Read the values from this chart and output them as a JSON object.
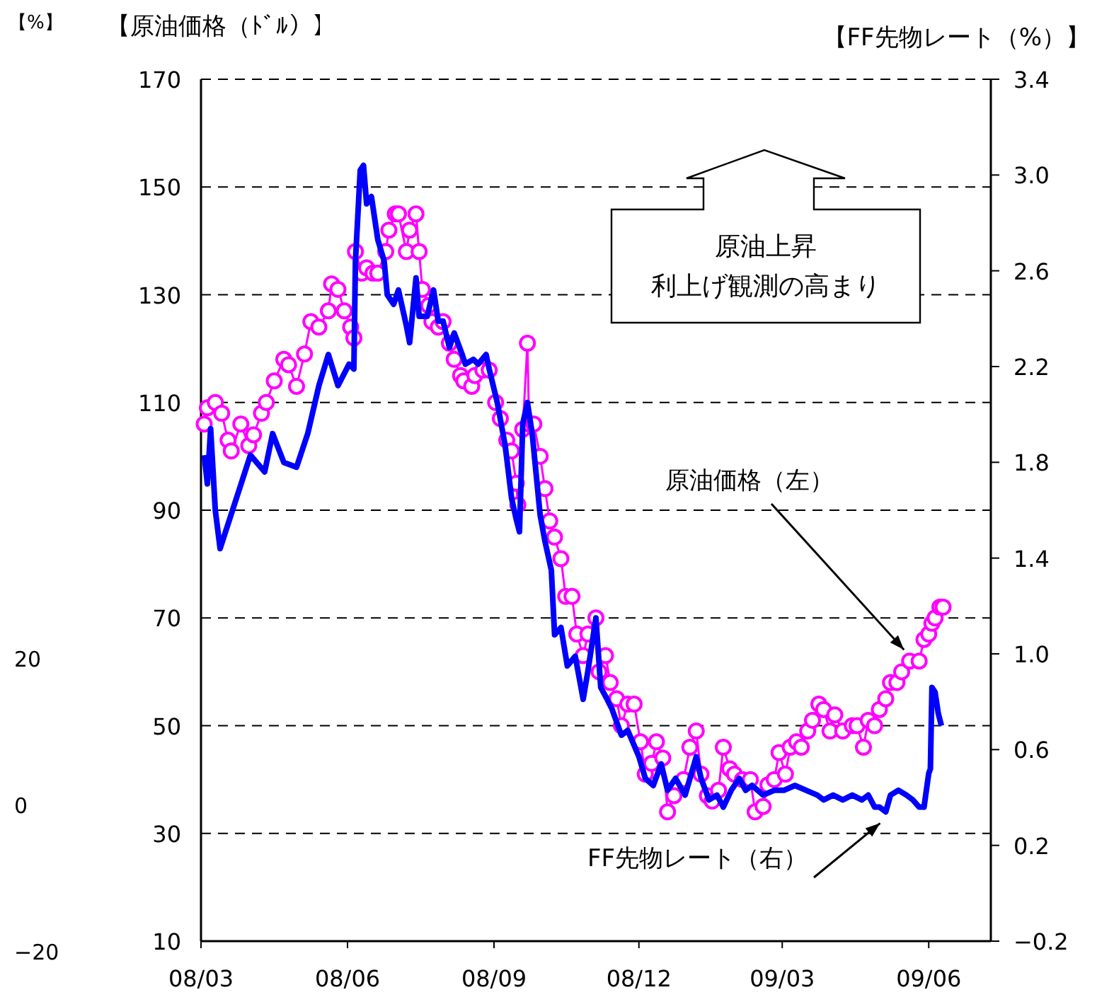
{
  "chart_data": {
    "type": "line",
    "ylabel": "【原油価格（ﾄﾞﾙ）】",
    "y2label": "【FF先物レート（%）】",
    "y3label": "【%】",
    "annotations": [
      "原油上昇",
      "利上げ観測の高まり",
      {
        "text": "原油価格（左）",
        "x": "2009-05-20",
        "y": 62
      },
      {
        "text": "FF先物レート（右）",
        "x": "2009-05-05",
        "y": 34
      }
    ],
    "xlim": [
      "2008-03-01",
      "2009-07-10"
    ],
    "xticks": [
      {
        "value": "2008-03-01",
        "label": "08/03"
      },
      {
        "value": "2008-06-01",
        "label": "08/06"
      },
      {
        "value": "2008-09-01",
        "label": "08/09"
      },
      {
        "value": "2008-12-01",
        "label": "08/12"
      },
      {
        "value": "2009-03-01",
        "label": "09/03"
      },
      {
        "value": "2009-06-01",
        "label": "09/06"
      }
    ],
    "ylim": [
      10,
      170
    ],
    "yticks": [
      10,
      30,
      50,
      70,
      90,
      110,
      130,
      150,
      170
    ],
    "y2lim": [
      -0.2,
      3.4
    ],
    "y2ticks": [
      {
        "value": -0.2,
        "label": "−0.2"
      },
      {
        "value": 0.2,
        "label": "0.2"
      },
      {
        "value": 0.6,
        "label": "0.6"
      },
      {
        "value": 1.0,
        "label": "1.0"
      },
      {
        "value": 1.4,
        "label": "1.4"
      },
      {
        "value": 1.8,
        "label": "1.8"
      },
      {
        "value": 2.2,
        "label": "2.2"
      },
      {
        "value": 2.6,
        "label": "2.6"
      },
      {
        "value": 3.0,
        "label": "3.0"
      },
      {
        "value": 3.4,
        "label": "3.4"
      }
    ],
    "y3lim": [
      -20,
      20
    ],
    "y3ticks": [
      {
        "value": -20,
        "label": "−20"
      },
      0,
      20
    ],
    "grid": "y",
    "series": [
      {
        "color": "#ff00ff",
        "marker": "circle",
        "x": [
          "2008-03-03",
          "2008-03-05",
          "2008-03-10",
          "2008-03-14",
          "2008-03-18",
          "2008-03-20",
          "2008-03-26",
          "2008-03-31",
          "2008-04-03",
          "2008-04-08",
          "2008-04-11",
          "2008-04-16",
          "2008-04-22",
          "2008-04-25",
          "2008-04-30",
          "2008-05-05",
          "2008-05-09",
          "2008-05-14",
          "2008-05-20",
          "2008-05-22",
          "2008-05-26",
          "2008-05-30",
          "2008-06-03",
          "2008-06-05",
          "2008-06-06",
          "2008-06-10",
          "2008-06-13",
          "2008-06-17",
          "2008-06-20",
          "2008-06-25",
          "2008-06-27",
          "2008-07-01",
          "2008-07-03",
          "2008-07-08",
          "2008-07-10",
          "2008-07-14",
          "2008-07-16",
          "2008-07-18",
          "2008-07-22",
          "2008-07-24",
          "2008-07-28",
          "2008-07-31",
          "2008-08-04",
          "2008-08-07",
          "2008-08-11",
          "2008-08-13",
          "2008-08-18",
          "2008-08-20",
          "2008-08-25",
          "2008-08-29",
          "2008-09-02",
          "2008-09-05",
          "2008-09-09",
          "2008-09-12",
          "2008-09-15",
          "2008-09-16",
          "2008-09-19",
          "2008-09-22",
          "2008-09-23",
          "2008-09-26",
          "2008-09-30",
          "2008-10-03",
          "2008-10-06",
          "2008-10-09",
          "2008-10-13",
          "2008-10-16",
          "2008-10-20",
          "2008-10-23",
          "2008-10-27",
          "2008-10-30",
          "2008-11-04",
          "2008-11-06",
          "2008-11-10",
          "2008-11-13",
          "2008-11-17",
          "2008-11-20",
          "2008-11-24",
          "2008-11-28",
          "2008-12-02",
          "2008-12-05",
          "2008-12-09",
          "2008-12-12",
          "2008-12-16",
          "2008-12-19",
          "2008-12-23",
          "2008-12-29",
          "2009-01-02",
          "2009-01-06",
          "2009-01-09",
          "2009-01-13",
          "2009-01-16",
          "2009-01-20",
          "2009-01-23",
          "2009-01-27",
          "2009-01-30",
          "2009-02-04",
          "2009-02-09",
          "2009-02-12",
          "2009-02-17",
          "2009-02-20",
          "2009-02-24",
          "2009-02-27",
          "2009-03-03",
          "2009-03-06",
          "2009-03-10",
          "2009-03-13",
          "2009-03-17",
          "2009-03-20",
          "2009-03-24",
          "2009-03-27",
          "2009-03-31",
          "2009-04-03",
          "2009-04-08",
          "2009-04-14",
          "2009-04-17",
          "2009-04-21",
          "2009-04-24",
          "2009-04-28",
          "2009-05-01",
          "2009-05-05",
          "2009-05-08",
          "2009-05-12",
          "2009-05-15",
          "2009-05-20",
          "2009-05-26",
          "2009-05-29",
          "2009-06-01",
          "2009-06-03",
          "2009-06-05",
          "2009-06-08",
          "2009-06-10"
        ],
        "values": [
          106,
          109,
          110,
          108,
          103,
          101,
          106,
          102,
          104,
          108,
          110,
          114,
          118,
          117,
          113,
          119,
          125,
          124,
          127,
          132,
          131,
          127,
          124,
          122,
          138,
          134,
          135,
          134,
          134,
          138,
          142,
          145,
          145,
          138,
          142,
          145,
          138,
          131,
          128,
          125,
          124,
          125,
          121,
          118,
          115,
          114,
          113,
          115,
          116,
          116,
          110,
          107,
          103,
          101,
          95,
          91,
          105,
          121,
          106,
          106,
          100,
          94,
          88,
          85,
          81,
          74,
          74,
          67,
          63,
          67,
          70,
          60,
          63,
          58,
          55,
          50,
          54,
          54,
          47,
          41,
          43,
          47,
          44,
          34,
          37,
          40,
          46,
          49,
          41,
          37,
          36,
          38,
          46,
          42,
          41,
          40,
          40,
          34,
          35,
          39,
          40,
          45,
          41,
          46,
          47,
          46,
          49,
          51,
          54,
          53,
          49,
          52,
          49,
          50,
          50,
          46,
          51,
          50,
          53,
          55,
          58,
          58,
          60,
          62,
          62,
          66,
          67,
          69,
          70,
          72,
          72
        ]
      },
      {
        "color": "#0000ff",
        "axis": "y2",
        "marker": "none",
        "x": [
          "2008-03-03",
          "2008-03-05",
          "2008-03-07",
          "2008-03-10",
          "2008-03-13",
          "2008-04-01",
          "2008-04-10",
          "2008-04-15",
          "2008-04-22",
          "2008-04-30",
          "2008-05-07",
          "2008-05-14",
          "2008-05-20",
          "2008-05-26",
          "2008-06-02",
          "2008-06-05",
          "2008-06-06",
          "2008-06-09",
          "2008-06-11",
          "2008-06-13",
          "2008-06-16",
          "2008-06-20",
          "2008-06-24",
          "2008-06-26",
          "2008-06-30",
          "2008-07-03",
          "2008-07-08",
          "2008-07-10",
          "2008-07-14",
          "2008-07-16",
          "2008-07-21",
          "2008-07-25",
          "2008-07-28",
          "2008-07-31",
          "2008-08-04",
          "2008-08-07",
          "2008-08-12",
          "2008-08-14",
          "2008-08-19",
          "2008-08-22",
          "2008-08-27",
          "2008-08-29",
          "2008-09-03",
          "2008-09-08",
          "2008-09-12",
          "2008-09-15",
          "2008-09-17",
          "2008-09-19",
          "2008-09-22",
          "2008-09-25",
          "2008-09-30",
          "2008-10-03",
          "2008-10-07",
          "2008-10-09",
          "2008-10-13",
          "2008-10-17",
          "2008-10-22",
          "2008-10-27",
          "2008-10-30",
          "2008-11-04",
          "2008-11-07",
          "2008-11-11",
          "2008-11-14",
          "2008-11-20",
          "2008-11-24",
          "2008-12-01",
          "2008-12-05",
          "2008-12-10",
          "2008-12-15",
          "2008-12-19",
          "2008-12-24",
          "2008-12-30",
          "2009-01-06",
          "2009-01-09",
          "2009-01-14",
          "2009-01-19",
          "2009-01-23",
          "2009-01-28",
          "2009-02-02",
          "2009-02-06",
          "2009-02-10",
          "2009-02-17",
          "2009-02-24",
          "2009-03-02",
          "2009-03-09",
          "2009-03-16",
          "2009-03-23",
          "2009-03-27",
          "2009-04-02",
          "2009-04-08",
          "2009-04-14",
          "2009-04-20",
          "2009-04-24",
          "2009-04-28",
          "2009-05-01",
          "2009-05-05",
          "2009-05-08",
          "2009-05-13",
          "2009-05-18",
          "2009-05-22",
          "2009-05-26",
          "2009-05-29",
          "2009-06-01",
          "2009-06-02",
          "2009-06-03",
          "2009-06-05",
          "2009-06-07",
          "2009-06-09"
        ],
        "values": [
          1.83,
          1.71,
          1.94,
          1.6,
          1.44,
          1.83,
          1.76,
          1.92,
          1.8,
          1.78,
          1.92,
          2.12,
          2.25,
          2.12,
          2.21,
          2.19,
          2.64,
          3.02,
          3.04,
          2.88,
          2.91,
          2.73,
          2.64,
          2.5,
          2.46,
          2.52,
          2.37,
          2.3,
          2.57,
          2.41,
          2.41,
          2.52,
          2.39,
          2.39,
          2.28,
          2.34,
          2.25,
          2.21,
          2.23,
          2.21,
          2.25,
          2.19,
          2.05,
          1.87,
          1.65,
          1.56,
          1.51,
          1.96,
          2.05,
          1.92,
          1.58,
          1.47,
          1.35,
          1.08,
          1.11,
          0.95,
          0.99,
          0.81,
          0.93,
          1.15,
          0.86,
          0.81,
          0.77,
          0.66,
          0.68,
          0.57,
          0.48,
          0.45,
          0.54,
          0.43,
          0.48,
          0.41,
          0.57,
          0.48,
          0.39,
          0.41,
          0.36,
          0.43,
          0.48,
          0.43,
          0.45,
          0.41,
          0.43,
          0.43,
          0.45,
          0.43,
          0.41,
          0.39,
          0.41,
          0.39,
          0.41,
          0.39,
          0.41,
          0.36,
          0.36,
          0.34,
          0.41,
          0.43,
          0.41,
          0.39,
          0.36,
          0.36,
          0.5,
          0.52,
          0.86,
          0.84,
          0.75,
          0.7
        ]
      }
    ]
  }
}
